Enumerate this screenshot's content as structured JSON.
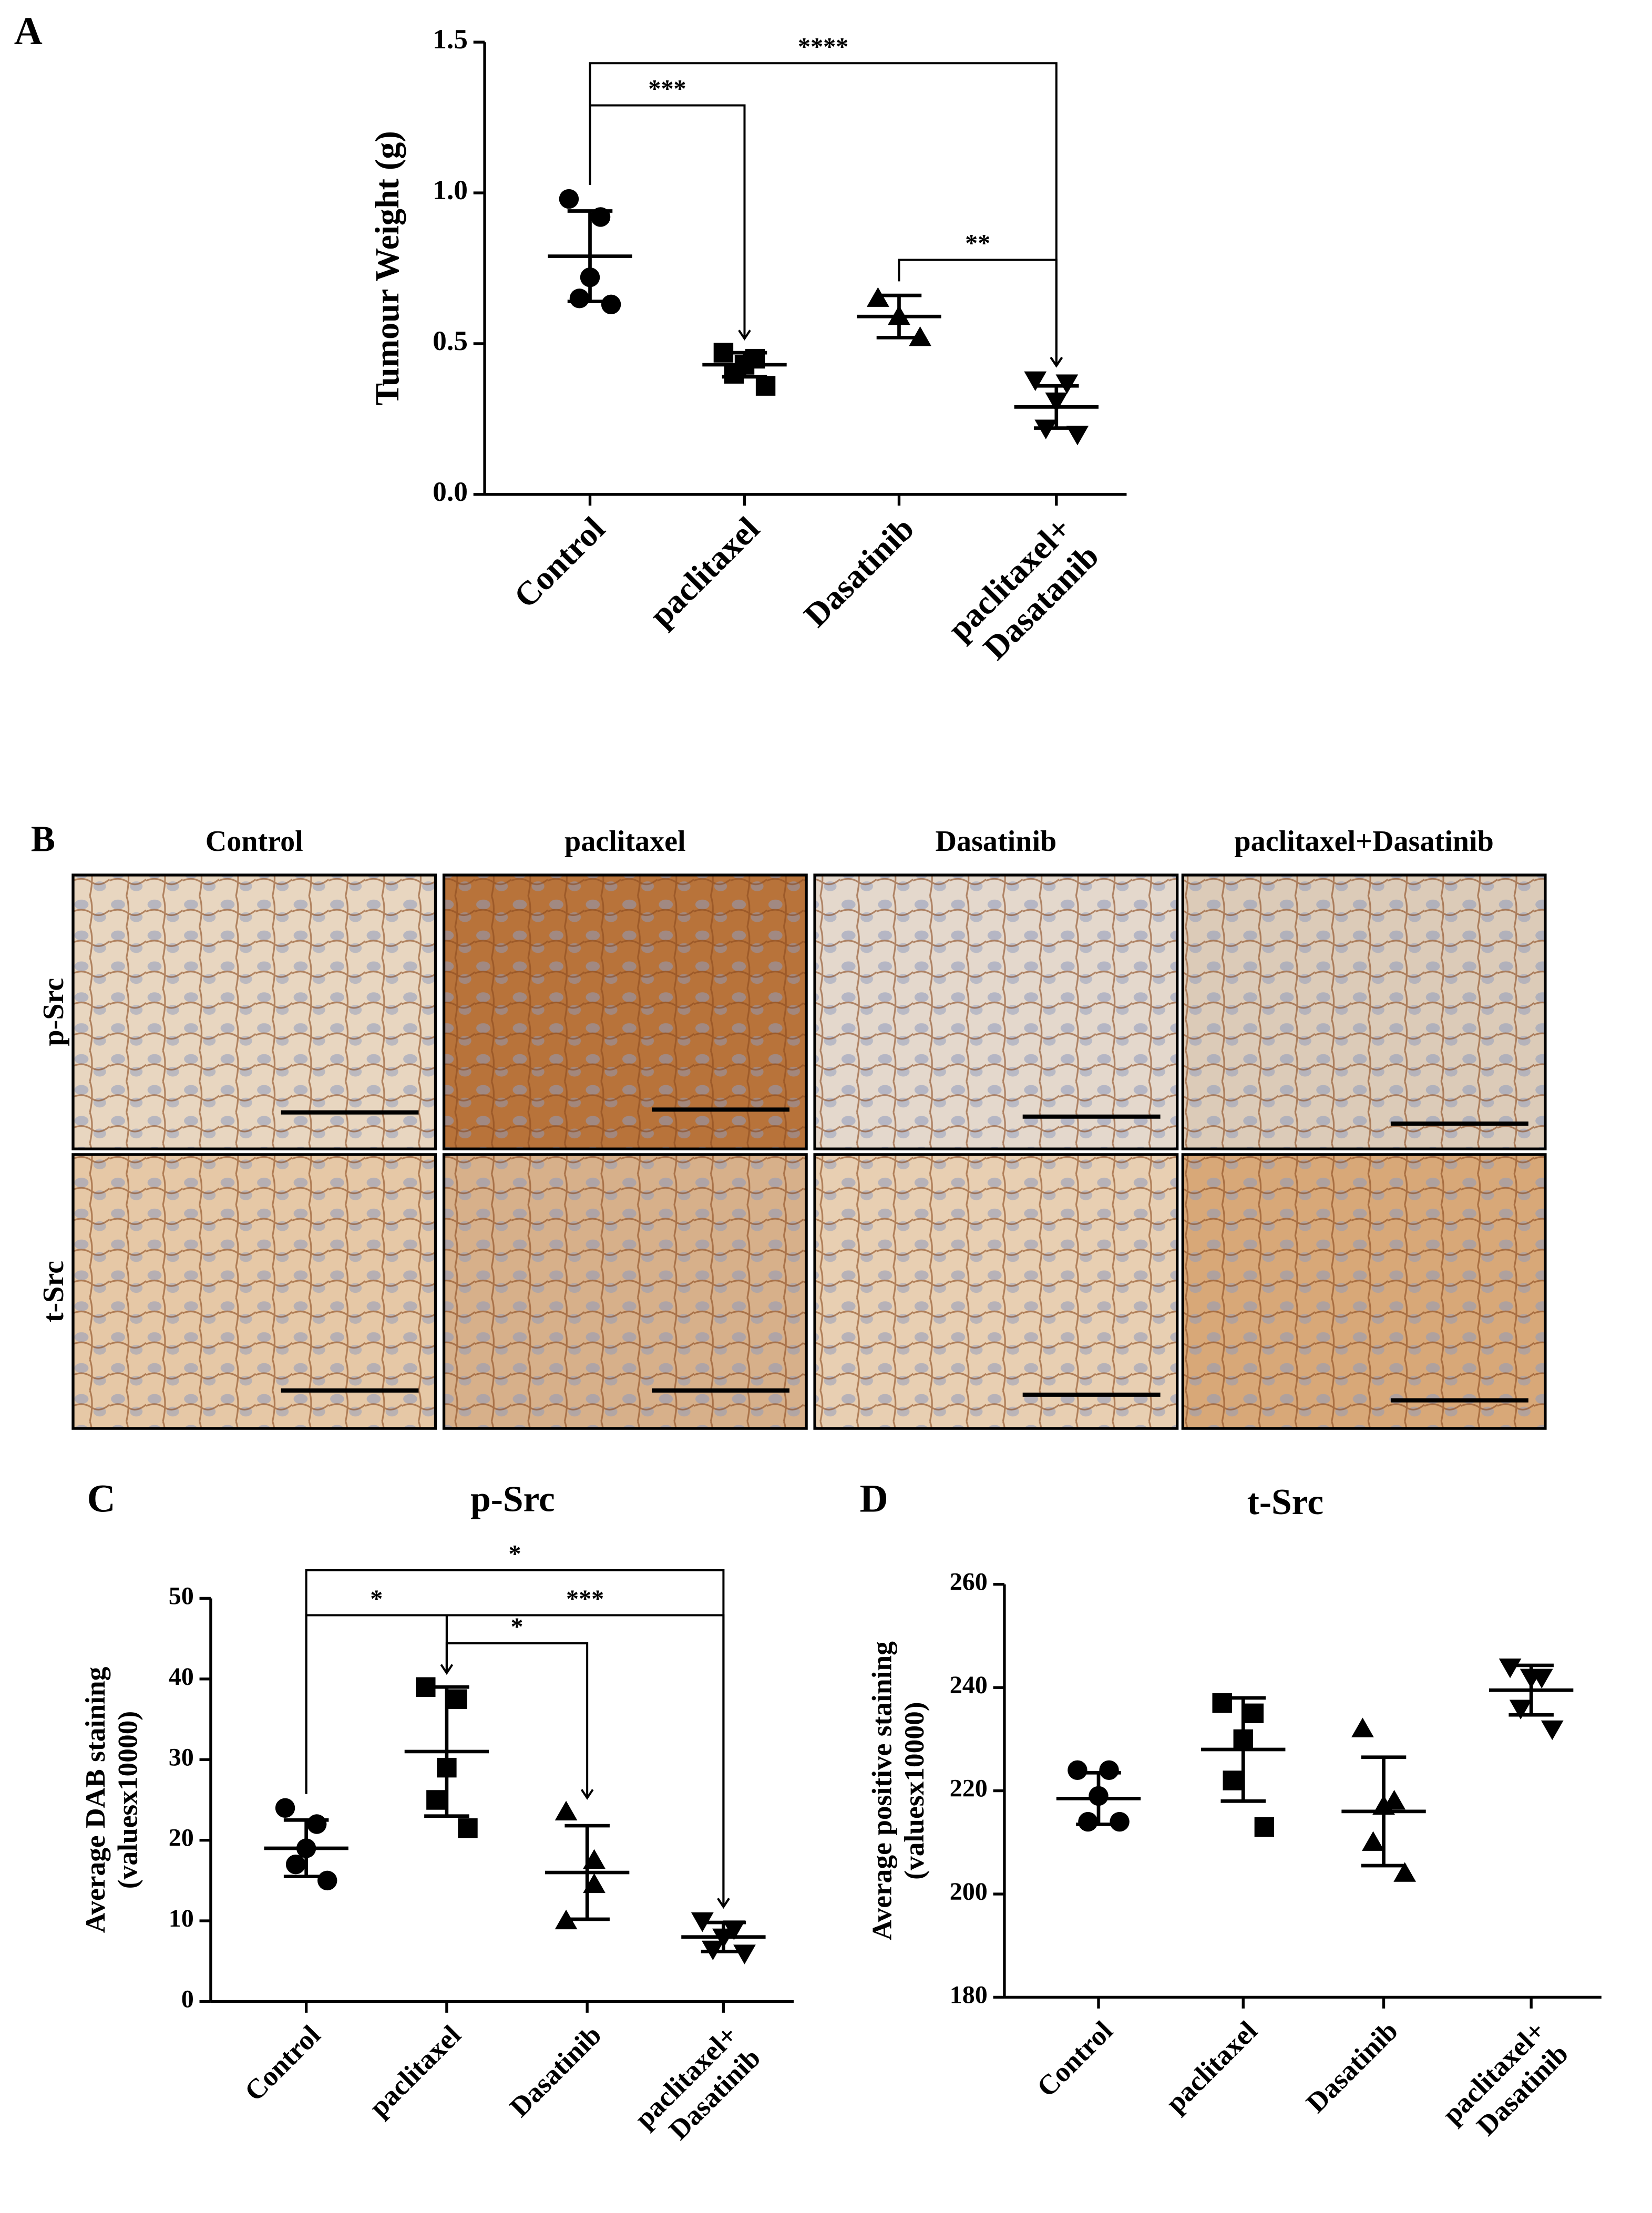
{
  "chart_data": [
    {
      "type": "dot",
      "panel": "A",
      "ylabel": "Tumour Weight (g)",
      "categories": [
        "Control",
        "paclitaxel",
        "Dasatinib",
        "paclitaxel+\nDasatanib"
      ],
      "markers": [
        "circle",
        "square",
        "triangle-up",
        "triangle-down"
      ],
      "points": [
        [
          0.98,
          0.92,
          0.72,
          0.65,
          0.63
        ],
        [
          0.47,
          0.45,
          0.43,
          0.4,
          0.36
        ],
        [
          0.65,
          0.59,
          0.52
        ],
        [
          0.38,
          0.37,
          0.31,
          0.22,
          0.2
        ]
      ],
      "mean": [
        0.79,
        0.43,
        0.59,
        0.29
      ],
      "sd": [
        0.15,
        0.04,
        0.07,
        0.07
      ],
      "ylim": [
        0,
        1.5
      ],
      "yticks": [
        {
          "value": 0,
          "label": "0.0"
        },
        0.5,
        {
          "value": 1,
          "label": "1.0"
        },
        1.5
      ],
      "brackets": [
        {
          "from": 0,
          "to": 3,
          "label": "****"
        },
        {
          "from": 0,
          "to": 1,
          "label": "***"
        },
        {
          "from": 2,
          "to": 3,
          "label": "**"
        }
      ]
    },
    {
      "type": "dot",
      "panel": "C",
      "title": "p-Src",
      "ylabel": "Average DAB staining\n(valuesx10000)",
      "categories": [
        "Control",
        "paclitaxel",
        "Dasatinib",
        "paclitaxel+\nDasatinib"
      ],
      "markers": [
        "circle",
        "square",
        "triangle-up",
        "triangle-down"
      ],
      "points": [
        [
          24,
          22,
          19,
          17,
          15
        ],
        [
          39,
          37.5,
          29,
          25,
          21.5
        ],
        [
          23.5,
          17.5,
          14.5,
          10
        ],
        [
          10,
          9,
          8,
          6.5,
          6
        ]
      ],
      "mean": [
        19,
        31,
        16,
        8
      ],
      "sd": [
        3.5,
        8,
        5.8,
        1.8
      ],
      "ylim": [
        0,
        50
      ],
      "yticks": [
        0,
        10,
        20,
        30,
        40,
        50
      ],
      "brackets": [
        {
          "from": 0,
          "to": 3,
          "label": "*"
        },
        {
          "from": 0,
          "to": 1,
          "label": "*"
        },
        {
          "from": 1,
          "to": 3,
          "label": "***"
        },
        {
          "from": 1,
          "to": 2,
          "label": "*"
        }
      ]
    },
    {
      "type": "dot",
      "panel": "D",
      "title": "t-Src",
      "ylabel": "Average positive staining\n(valuesx10000)",
      "categories": [
        "Control",
        "paclitaxel",
        "Dasatinib",
        "paclitaxel+\nDasatinib"
      ],
      "markers": [
        "circle",
        "square",
        "triangle-up",
        "triangle-down"
      ],
      "points": [
        [
          224,
          224,
          219,
          214,
          214
        ],
        [
          237,
          235,
          230,
          222,
          213
        ],
        [
          232,
          218,
          217,
          210,
          204
        ],
        [
          244,
          242,
          242,
          236,
          232
        ]
      ],
      "mean": [
        218.5,
        228,
        216,
        239.5
      ],
      "sd": [
        5,
        10,
        10.5,
        4.8
      ],
      "ylim": [
        180,
        260
      ],
      "yticks": [
        180,
        200,
        220,
        240,
        260
      ],
      "brackets": []
    }
  ],
  "micrographs": {
    "panel": "B",
    "columns": [
      "Control",
      "paclitaxel",
      "Dasatinib",
      "paclitaxel+Dasatinib"
    ],
    "rows": [
      "p-Src",
      "t-Src"
    ]
  }
}
